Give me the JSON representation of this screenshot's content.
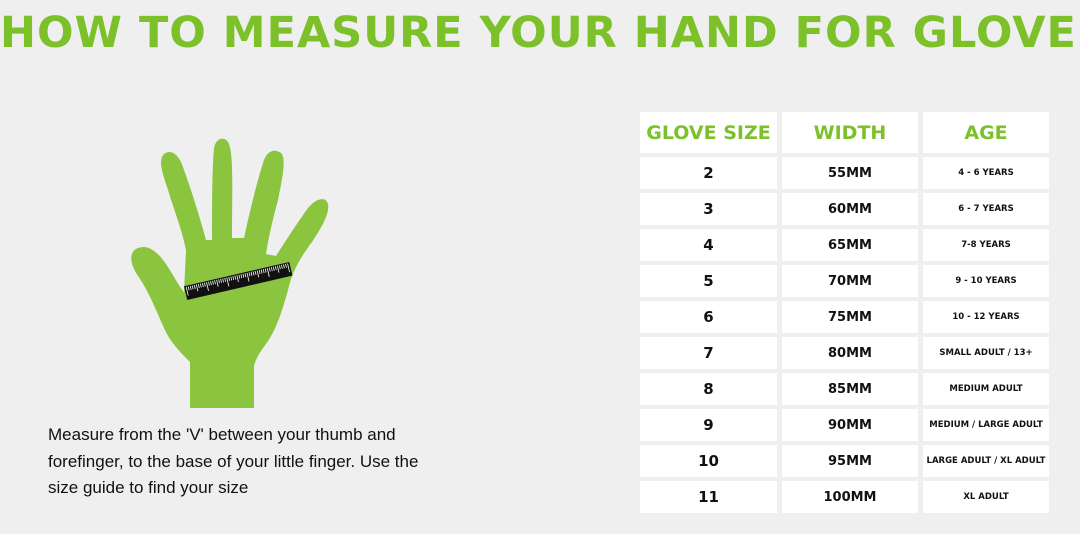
{
  "title": "HOW TO MEASURE YOUR HAND FOR GLOVES",
  "caption": "Measure from the 'V' between your thumb and forefinger, to the base of your little finger. Use the size guide to find your size",
  "colors": {
    "accent": "#7cc02a",
    "hand": "#8bc540",
    "background": "#efefef"
  },
  "table": {
    "headers": [
      "GLOVE SIZE",
      "WIDTH",
      "AGE"
    ],
    "rows": [
      [
        "2",
        "55MM",
        "4 - 6 YEARS"
      ],
      [
        "3",
        "60MM",
        "6 - 7 YEARS"
      ],
      [
        "4",
        "65MM",
        "7-8 YEARS"
      ],
      [
        "5",
        "70MM",
        "9 - 10 YEARS"
      ],
      [
        "6",
        "75MM",
        "10 - 12 YEARS"
      ],
      [
        "7",
        "80MM",
        "SMALL ADULT / 13+"
      ],
      [
        "8",
        "85MM",
        "MEDIUM ADULT"
      ],
      [
        "9",
        "90MM",
        "MEDIUM / LARGE ADULT"
      ],
      [
        "10",
        "95MM",
        "LARGE ADULT / XL ADULT"
      ],
      [
        "11",
        "100MM",
        "XL ADULT"
      ]
    ]
  }
}
